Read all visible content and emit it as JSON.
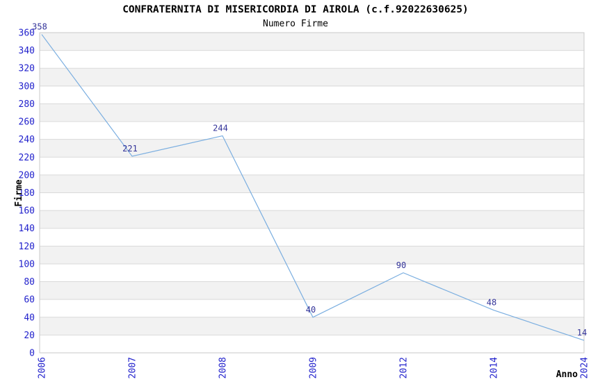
{
  "title": "CONFRATERNITA DI MISERICORDIA DI AIROLA (c.f.92022630625)",
  "subtitle": "Numero Firme",
  "chart_data": {
    "type": "line",
    "title": "CONFRATERNITA DI MISERICORDIA DI AIROLA (c.f.92022630625)",
    "subtitle": "Numero Firme",
    "categories": [
      "2006",
      "2007",
      "2008",
      "2009",
      "2012",
      "2014",
      "2024"
    ],
    "series": [
      {
        "name": "Numero Firme",
        "values": [
          358,
          221,
          244,
          40,
          90,
          48,
          14
        ]
      }
    ],
    "point_labels": [
      "358",
      "221",
      "244",
      "40",
      "90",
      "48",
      "14"
    ],
    "xlabel": "Anno",
    "ylabel": "Firme",
    "ylim": [
      0,
      360
    ],
    "ytick_step": 20,
    "grid": true,
    "banded_rows": true,
    "legend_position": "none"
  },
  "colors": {
    "line": "#7aaee0",
    "tick_label": "#2121cc",
    "point_label": "#333399",
    "band": "#f2f2f2",
    "grid": "#d9d9d9",
    "border": "#c9c9c9",
    "text": "#000000",
    "background": "#ffffff"
  }
}
